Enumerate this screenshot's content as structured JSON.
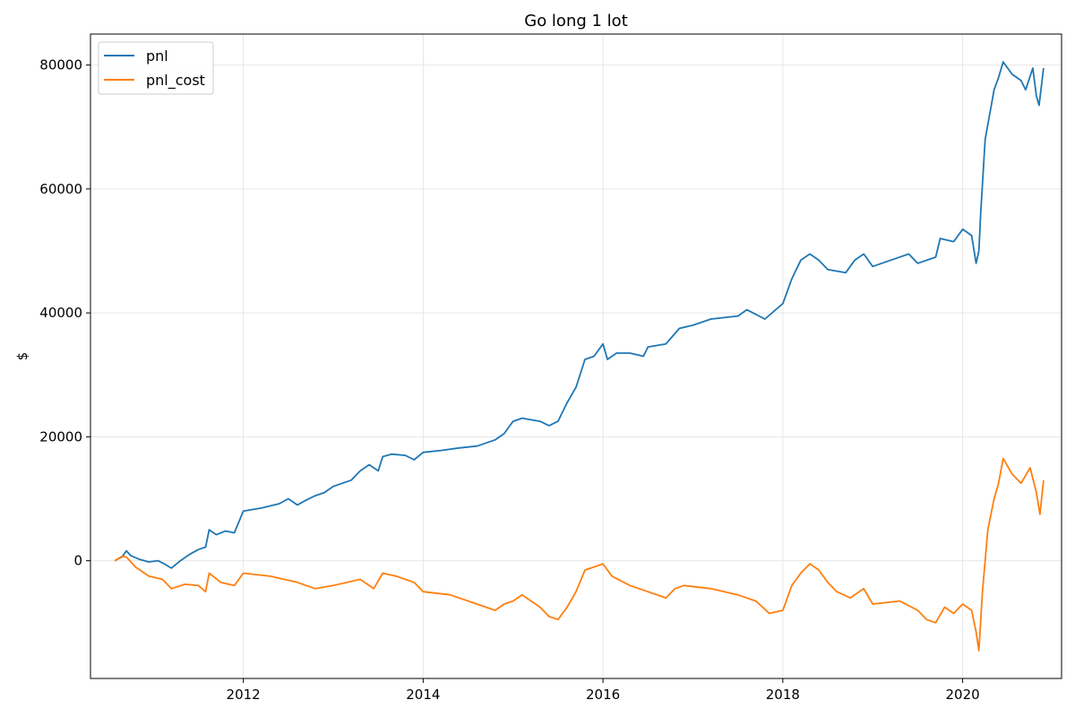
{
  "chart_data": {
    "type": "line",
    "title": "Go long 1 lot",
    "xlabel": "",
    "ylabel": "$",
    "xlim": [
      2010.3,
      2021.1
    ],
    "ylim": [
      -19000,
      85000
    ],
    "x_ticks": [
      2012,
      2014,
      2016,
      2018,
      2020
    ],
    "x_tick_labels": [
      "2012",
      "2014",
      "2016",
      "2018",
      "2020"
    ],
    "y_ticks": [
      0,
      20000,
      40000,
      60000,
      80000
    ],
    "y_tick_labels": [
      "0",
      "20000",
      "40000",
      "60000",
      "80000"
    ],
    "grid": true,
    "legend": {
      "position": "top-left"
    },
    "series": [
      {
        "name": "pnl",
        "color": "#1f77b4",
        "points": [
          [
            2010.57,
            0
          ],
          [
            2010.65,
            600
          ],
          [
            2010.7,
            1600
          ],
          [
            2010.75,
            800
          ],
          [
            2010.85,
            200
          ],
          [
            2010.95,
            -200
          ],
          [
            2011.05,
            0
          ],
          [
            2011.12,
            -500
          ],
          [
            2011.2,
            -1200
          ],
          [
            2011.3,
            0
          ],
          [
            2011.4,
            1000
          ],
          [
            2011.5,
            1800
          ],
          [
            2011.58,
            2200
          ],
          [
            2011.62,
            5000
          ],
          [
            2011.7,
            4200
          ],
          [
            2011.8,
            4800
          ],
          [
            2011.9,
            4500
          ],
          [
            2012.0,
            8000
          ],
          [
            2012.2,
            8500
          ],
          [
            2012.4,
            9200
          ],
          [
            2012.5,
            10000
          ],
          [
            2012.6,
            9000
          ],
          [
            2012.7,
            9800
          ],
          [
            2012.8,
            10500
          ],
          [
            2012.9,
            11000
          ],
          [
            2013.0,
            12000
          ],
          [
            2013.2,
            13000
          ],
          [
            2013.3,
            14500
          ],
          [
            2013.4,
            15500
          ],
          [
            2013.5,
            14500
          ],
          [
            2013.55,
            16800
          ],
          [
            2013.65,
            17200
          ],
          [
            2013.8,
            17000
          ],
          [
            2013.9,
            16300
          ],
          [
            2014.0,
            17500
          ],
          [
            2014.2,
            17800
          ],
          [
            2014.4,
            18200
          ],
          [
            2014.6,
            18500
          ],
          [
            2014.8,
            19500
          ],
          [
            2014.9,
            20500
          ],
          [
            2015.0,
            22500
          ],
          [
            2015.1,
            23000
          ],
          [
            2015.3,
            22500
          ],
          [
            2015.4,
            21800
          ],
          [
            2015.5,
            22500
          ],
          [
            2015.6,
            25500
          ],
          [
            2015.7,
            28000
          ],
          [
            2015.8,
            32500
          ],
          [
            2015.9,
            33000
          ],
          [
            2016.0,
            35000
          ],
          [
            2016.05,
            32500
          ],
          [
            2016.15,
            33500
          ],
          [
            2016.3,
            33500
          ],
          [
            2016.45,
            33000
          ],
          [
            2016.5,
            34500
          ],
          [
            2016.7,
            35000
          ],
          [
            2016.85,
            37500
          ],
          [
            2017.0,
            38000
          ],
          [
            2017.2,
            39000
          ],
          [
            2017.5,
            39500
          ],
          [
            2017.6,
            40500
          ],
          [
            2017.8,
            39000
          ],
          [
            2018.0,
            41500
          ],
          [
            2018.1,
            45500
          ],
          [
            2018.2,
            48500
          ],
          [
            2018.3,
            49500
          ],
          [
            2018.4,
            48500
          ],
          [
            2018.5,
            47000
          ],
          [
            2018.7,
            46500
          ],
          [
            2018.8,
            48500
          ],
          [
            2018.9,
            49500
          ],
          [
            2019.0,
            47500
          ],
          [
            2019.2,
            48500
          ],
          [
            2019.4,
            49500
          ],
          [
            2019.5,
            48000
          ],
          [
            2019.7,
            49000
          ],
          [
            2019.75,
            52000
          ],
          [
            2019.9,
            51500
          ],
          [
            2020.0,
            53500
          ],
          [
            2020.1,
            52500
          ],
          [
            2020.15,
            48000
          ],
          [
            2020.18,
            50000
          ],
          [
            2020.2,
            56000
          ],
          [
            2020.25,
            68000
          ],
          [
            2020.3,
            72000
          ],
          [
            2020.35,
            76000
          ],
          [
            2020.4,
            78000
          ],
          [
            2020.45,
            80500
          ],
          [
            2020.55,
            78500
          ],
          [
            2020.65,
            77500
          ],
          [
            2020.7,
            76000
          ],
          [
            2020.78,
            79500
          ],
          [
            2020.82,
            75000
          ],
          [
            2020.85,
            73500
          ],
          [
            2020.9,
            79500
          ]
        ]
      },
      {
        "name": "pnl_cost",
        "color": "#ff7f0e",
        "points": [
          [
            2010.57,
            0
          ],
          [
            2010.65,
            700
          ],
          [
            2010.7,
            600
          ],
          [
            2010.8,
            -1000
          ],
          [
            2010.95,
            -2500
          ],
          [
            2011.1,
            -3000
          ],
          [
            2011.2,
            -4500
          ],
          [
            2011.35,
            -3800
          ],
          [
            2011.5,
            -4000
          ],
          [
            2011.58,
            -5000
          ],
          [
            2011.62,
            -2000
          ],
          [
            2011.75,
            -3500
          ],
          [
            2011.9,
            -4000
          ],
          [
            2012.0,
            -2000
          ],
          [
            2012.3,
            -2500
          ],
          [
            2012.6,
            -3500
          ],
          [
            2012.8,
            -4500
          ],
          [
            2013.0,
            -4000
          ],
          [
            2013.3,
            -3000
          ],
          [
            2013.45,
            -4500
          ],
          [
            2013.55,
            -2000
          ],
          [
            2013.7,
            -2500
          ],
          [
            2013.9,
            -3500
          ],
          [
            2014.0,
            -5000
          ],
          [
            2014.3,
            -5500
          ],
          [
            2014.5,
            -6500
          ],
          [
            2014.7,
            -7500
          ],
          [
            2014.8,
            -8000
          ],
          [
            2014.9,
            -7000
          ],
          [
            2015.0,
            -6500
          ],
          [
            2015.1,
            -5500
          ],
          [
            2015.3,
            -7500
          ],
          [
            2015.4,
            -9000
          ],
          [
            2015.5,
            -9500
          ],
          [
            2015.6,
            -7500
          ],
          [
            2015.7,
            -5000
          ],
          [
            2015.8,
            -1500
          ],
          [
            2015.9,
            -1000
          ],
          [
            2016.0,
            -500
          ],
          [
            2016.1,
            -2500
          ],
          [
            2016.3,
            -4000
          ],
          [
            2016.5,
            -5000
          ],
          [
            2016.7,
            -6000
          ],
          [
            2016.8,
            -4500
          ],
          [
            2016.9,
            -4000
          ],
          [
            2017.2,
            -4500
          ],
          [
            2017.5,
            -5500
          ],
          [
            2017.7,
            -6500
          ],
          [
            2017.85,
            -8500
          ],
          [
            2018.0,
            -8000
          ],
          [
            2018.1,
            -4000
          ],
          [
            2018.2,
            -2000
          ],
          [
            2018.3,
            -500
          ],
          [
            2018.4,
            -1500
          ],
          [
            2018.5,
            -3500
          ],
          [
            2018.6,
            -5000
          ],
          [
            2018.75,
            -6000
          ],
          [
            2018.9,
            -4500
          ],
          [
            2019.0,
            -7000
          ],
          [
            2019.3,
            -6500
          ],
          [
            2019.5,
            -8000
          ],
          [
            2019.6,
            -9500
          ],
          [
            2019.7,
            -10000
          ],
          [
            2019.8,
            -7500
          ],
          [
            2019.9,
            -8500
          ],
          [
            2020.0,
            -7000
          ],
          [
            2020.1,
            -8000
          ],
          [
            2020.15,
            -11500
          ],
          [
            2020.18,
            -14500
          ],
          [
            2020.22,
            -5000
          ],
          [
            2020.28,
            5000
          ],
          [
            2020.35,
            10000
          ],
          [
            2020.4,
            12500
          ],
          [
            2020.45,
            16500
          ],
          [
            2020.55,
            14000
          ],
          [
            2020.65,
            12500
          ],
          [
            2020.75,
            15000
          ],
          [
            2020.82,
            11000
          ],
          [
            2020.86,
            7500
          ],
          [
            2020.9,
            13000
          ]
        ]
      }
    ]
  }
}
